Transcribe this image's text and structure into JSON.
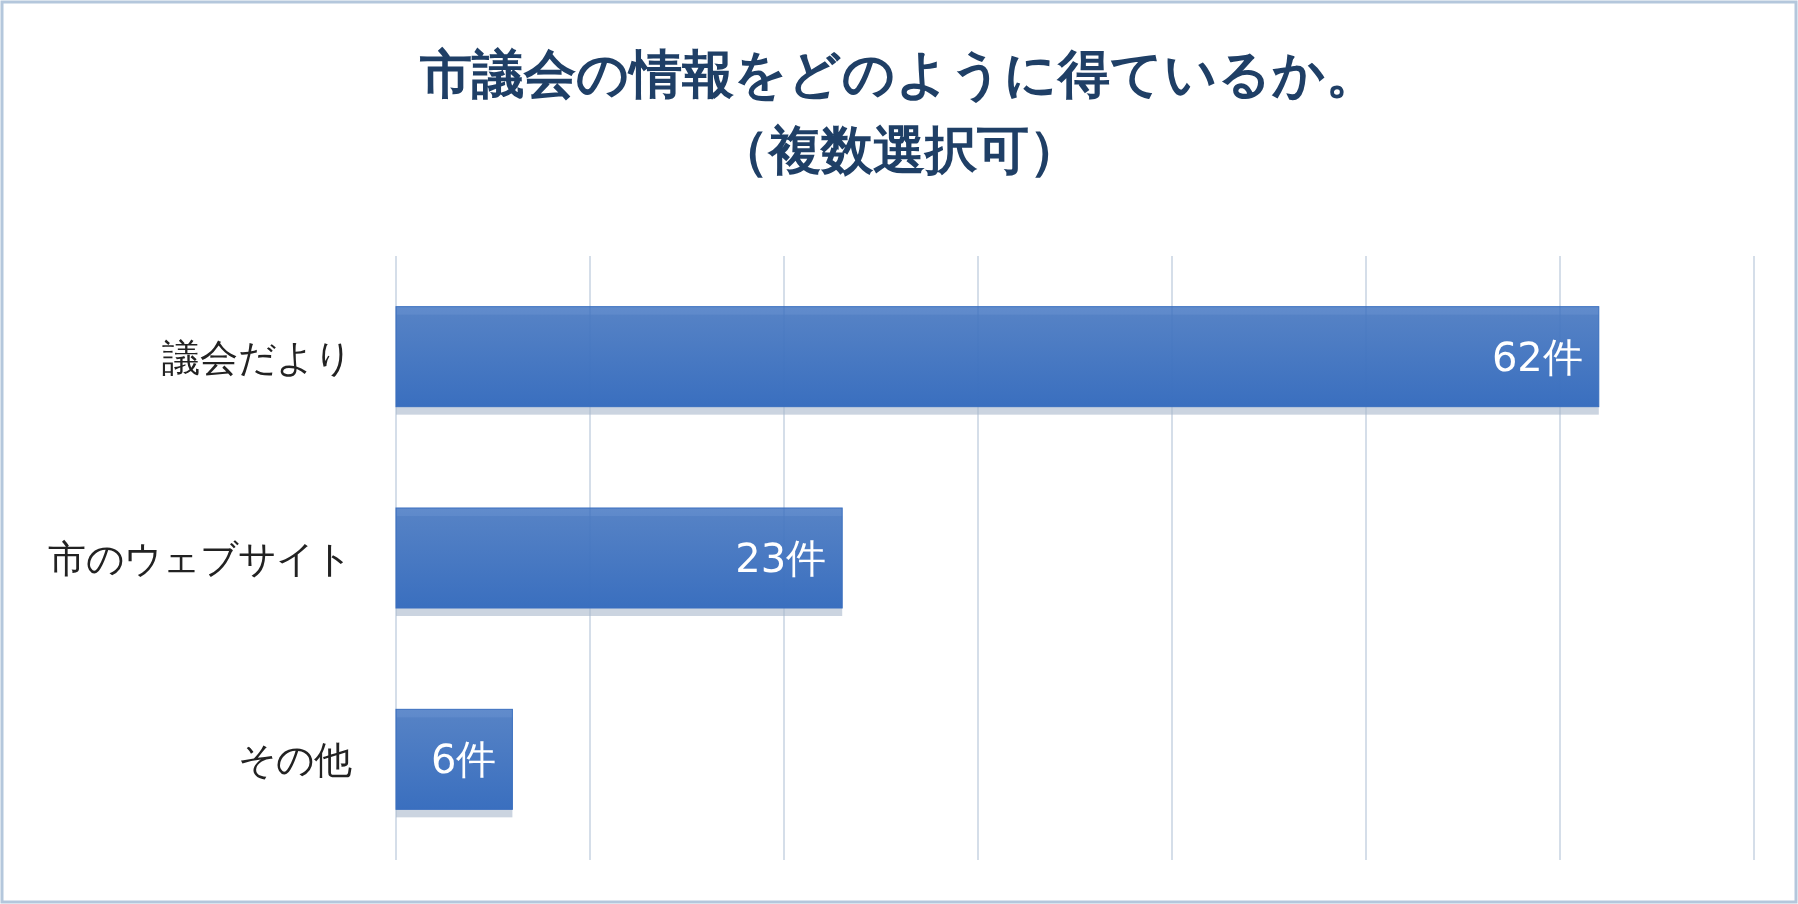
{
  "chart_data": {
    "type": "bar",
    "orientation": "horizontal",
    "title": "市議会の情報をどのように得ているか。",
    "subtitle": "（複数選択可）",
    "categories": [
      "議会だより",
      "市のウェブサイト",
      "その他"
    ],
    "values": [
      62,
      23,
      6
    ],
    "color": "#3a6fbf",
    "value_labels": [
      "62件",
      "23件",
      "6件"
    ],
    "xlim": [
      0,
      70
    ],
    "xticks": [
      {
        "value": 0,
        "label": null
      },
      {
        "value": 10,
        "label": null
      },
      {
        "value": 20,
        "label": null
      },
      {
        "value": 30,
        "label": null
      },
      {
        "value": 40,
        "label": null
      },
      {
        "value": 50,
        "label": null
      },
      {
        "value": 60,
        "label": null
      },
      {
        "value": 70,
        "label": null
      }
    ],
    "grid": "x",
    "tick_labels": "y"
  }
}
